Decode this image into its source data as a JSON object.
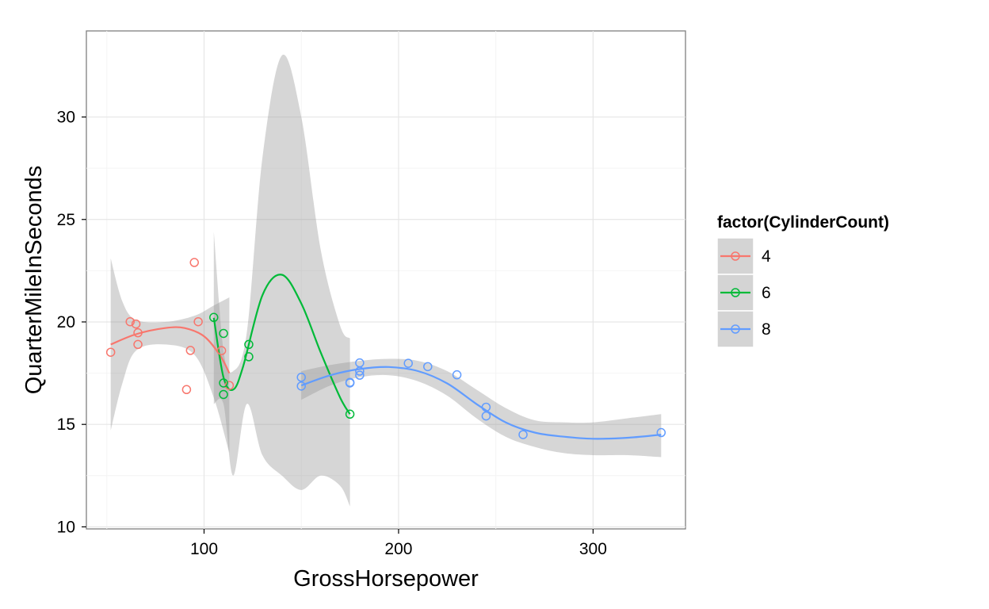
{
  "chart_data": {
    "type": "scatter",
    "title": "",
    "xlabel": "GrossHorsepower",
    "ylabel": "QuarterMileInSeconds",
    "xlim": [
      39.5,
      347.5
    ],
    "ylim": [
      9.9,
      34.2
    ],
    "x_ticks": [
      100,
      200,
      300
    ],
    "x_tick_labels": [
      "100",
      "200",
      "300"
    ],
    "y_ticks": [
      10,
      15,
      20,
      25,
      30
    ],
    "y_tick_labels": [
      "10",
      "15",
      "20",
      "25",
      "30"
    ],
    "grid": true,
    "legend": {
      "title": "factor(CylinderCount)",
      "placement": "right",
      "entries": [
        "4",
        "6",
        "8"
      ]
    },
    "series": [
      {
        "name": "4",
        "color": "#F8766D",
        "points": [
          [
            52,
            18.52
          ],
          [
            62,
            20.01
          ],
          [
            65,
            19.9
          ],
          [
            66,
            19.47
          ],
          [
            66,
            18.9
          ],
          [
            91,
            16.7
          ],
          [
            93,
            18.61
          ],
          [
            95,
            22.9
          ],
          [
            97,
            20.01
          ],
          [
            109,
            18.6
          ],
          [
            113,
            16.9
          ]
        ],
        "smooth": [
          [
            52,
            18.9
          ],
          [
            65,
            19.4
          ],
          [
            80,
            19.7
          ],
          [
            90,
            19.7
          ],
          [
            100,
            19.3
          ],
          [
            108,
            18.4
          ],
          [
            113,
            17.5
          ]
        ],
        "band_upper": [
          [
            52,
            23.1
          ],
          [
            58,
            21.0
          ],
          [
            65,
            20.1
          ],
          [
            80,
            20.0
          ],
          [
            95,
            20.3
          ],
          [
            105,
            20.8
          ],
          [
            113,
            21.2
          ]
        ],
        "band_lower": [
          [
            52,
            14.7
          ],
          [
            58,
            17.0
          ],
          [
            65,
            18.6
          ],
          [
            80,
            18.9
          ],
          [
            95,
            18.4
          ],
          [
            105,
            16.3
          ],
          [
            113,
            13.6
          ]
        ]
      },
      {
        "name": "6",
        "color": "#00BA38",
        "points": [
          [
            105,
            20.22
          ],
          [
            110,
            19.44
          ],
          [
            110,
            17.02
          ],
          [
            110,
            16.46
          ],
          [
            123,
            18.9
          ],
          [
            123,
            18.3
          ],
          [
            175,
            15.5
          ]
        ],
        "smooth": [
          [
            105,
            20.2
          ],
          [
            110,
            17.3
          ],
          [
            115,
            16.7
          ],
          [
            120,
            17.8
          ],
          [
            130,
            21.3
          ],
          [
            140,
            22.3
          ],
          [
            150,
            20.9
          ],
          [
            160,
            18.5
          ],
          [
            170,
            16.3
          ],
          [
            175,
            15.5
          ]
        ],
        "band_upper": [
          [
            105,
            24.4
          ],
          [
            110,
            18.6
          ],
          [
            115,
            17.6
          ],
          [
            122,
            19.5
          ],
          [
            130,
            28.0
          ],
          [
            140,
            33.0
          ],
          [
            150,
            30.0
          ],
          [
            160,
            23.5
          ],
          [
            170,
            19.8
          ],
          [
            175,
            19.2
          ]
        ],
        "band_lower": [
          [
            105,
            16.0
          ],
          [
            110,
            16.0
          ],
          [
            115,
            12.5
          ],
          [
            122,
            16.0
          ],
          [
            130,
            13.5
          ],
          [
            140,
            12.5
          ],
          [
            150,
            11.8
          ],
          [
            160,
            12.5
          ],
          [
            170,
            12.0
          ],
          [
            175,
            11.0
          ]
        ]
      },
      {
        "name": "8",
        "color": "#619CFF",
        "points": [
          [
            150,
            17.3
          ],
          [
            150,
            16.87
          ],
          [
            175,
            17.02
          ],
          [
            175,
            17.05
          ],
          [
            180,
            17.4
          ],
          [
            180,
            17.6
          ],
          [
            180,
            18.0
          ],
          [
            205,
            17.98
          ],
          [
            215,
            17.82
          ],
          [
            230,
            17.42
          ],
          [
            245,
            15.84
          ],
          [
            245,
            15.41
          ],
          [
            264,
            14.5
          ],
          [
            335,
            14.6
          ]
        ],
        "smooth": [
          [
            150,
            16.9
          ],
          [
            165,
            17.4
          ],
          [
            180,
            17.7
          ],
          [
            195,
            17.8
          ],
          [
            210,
            17.6
          ],
          [
            225,
            17.0
          ],
          [
            240,
            16.0
          ],
          [
            255,
            15.1
          ],
          [
            270,
            14.6
          ],
          [
            285,
            14.4
          ],
          [
            300,
            14.3
          ],
          [
            318,
            14.35
          ],
          [
            335,
            14.5
          ]
        ],
        "band_upper": [
          [
            150,
            17.6
          ],
          [
            165,
            17.9
          ],
          [
            180,
            18.1
          ],
          [
            195,
            18.2
          ],
          [
            210,
            18.1
          ],
          [
            225,
            17.6
          ],
          [
            240,
            16.7
          ],
          [
            255,
            15.8
          ],
          [
            270,
            15.2
          ],
          [
            285,
            15.1
          ],
          [
            300,
            15.1
          ],
          [
            318,
            15.3
          ],
          [
            335,
            15.5
          ]
        ],
        "band_lower": [
          [
            150,
            16.2
          ],
          [
            165,
            16.9
          ],
          [
            180,
            17.3
          ],
          [
            195,
            17.4
          ],
          [
            210,
            17.1
          ],
          [
            225,
            16.4
          ],
          [
            240,
            15.3
          ],
          [
            255,
            14.4
          ],
          [
            270,
            13.9
          ],
          [
            285,
            13.6
          ],
          [
            300,
            13.5
          ],
          [
            318,
            13.5
          ],
          [
            335,
            13.4
          ]
        ]
      }
    ]
  }
}
